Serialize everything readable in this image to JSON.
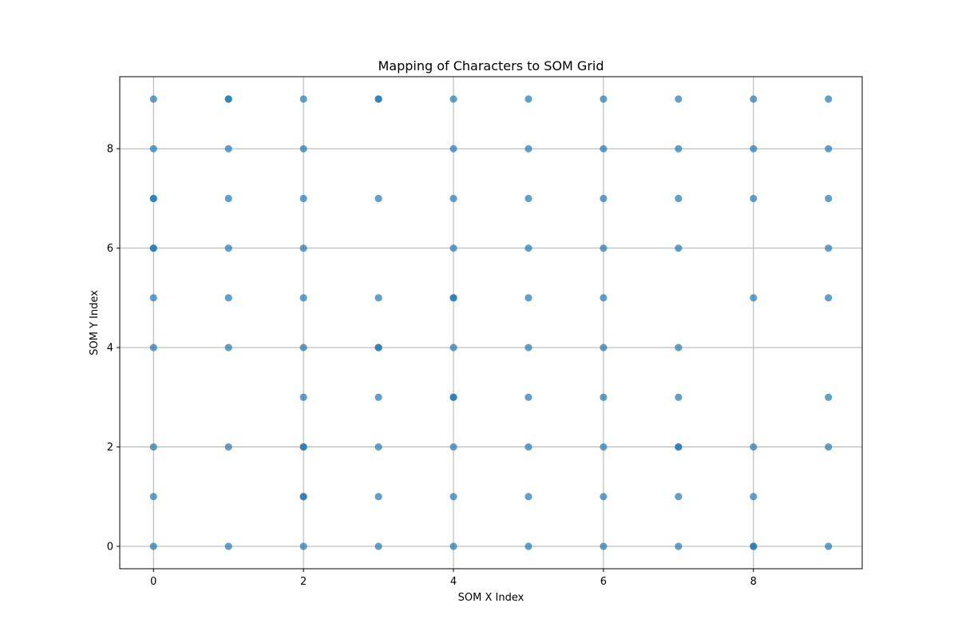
{
  "chart_data": {
    "type": "scatter",
    "title": "Mapping of Characters to SOM Grid",
    "xlabel": "SOM X Index",
    "ylabel": "SOM Y Index",
    "xlim": [
      -0.45,
      9.45
    ],
    "ylim": [
      -0.45,
      9.45
    ],
    "xticks": [
      0,
      2,
      4,
      6,
      8
    ],
    "yticks": [
      0,
      2,
      4,
      6,
      8
    ],
    "grid": true,
    "marker_color": "#1f77b4",
    "points": [
      [
        0,
        9
      ],
      [
        0,
        8
      ],
      [
        0,
        7
      ],
      [
        0,
        7
      ],
      [
        0,
        6
      ],
      [
        0,
        6
      ],
      [
        0,
        5
      ],
      [
        0,
        4
      ],
      [
        0,
        2
      ],
      [
        0,
        1
      ],
      [
        0,
        0
      ],
      [
        1,
        9
      ],
      [
        1,
        9
      ],
      [
        1,
        8
      ],
      [
        1,
        7
      ],
      [
        1,
        6
      ],
      [
        1,
        5
      ],
      [
        1,
        4
      ],
      [
        1,
        2
      ],
      [
        1,
        0
      ],
      [
        2,
        9
      ],
      [
        2,
        8
      ],
      [
        2,
        7
      ],
      [
        2,
        6
      ],
      [
        2,
        5
      ],
      [
        2,
        4
      ],
      [
        2,
        3
      ],
      [
        2,
        2
      ],
      [
        2,
        2
      ],
      [
        2,
        1
      ],
      [
        2,
        1
      ],
      [
        2,
        0
      ],
      [
        3,
        9
      ],
      [
        3,
        9
      ],
      [
        3,
        7
      ],
      [
        3,
        5
      ],
      [
        3,
        4
      ],
      [
        3,
        4
      ],
      [
        3,
        3
      ],
      [
        3,
        2
      ],
      [
        3,
        1
      ],
      [
        3,
        0
      ],
      [
        4,
        9
      ],
      [
        4,
        8
      ],
      [
        4,
        7
      ],
      [
        4,
        6
      ],
      [
        4,
        5
      ],
      [
        4,
        5
      ],
      [
        4,
        4
      ],
      [
        4,
        3
      ],
      [
        4,
        3
      ],
      [
        4,
        2
      ],
      [
        4,
        1
      ],
      [
        4,
        0
      ],
      [
        5,
        9
      ],
      [
        5,
        8
      ],
      [
        5,
        7
      ],
      [
        5,
        6
      ],
      [
        5,
        5
      ],
      [
        5,
        4
      ],
      [
        5,
        3
      ],
      [
        5,
        2
      ],
      [
        5,
        1
      ],
      [
        5,
        0
      ],
      [
        6,
        9
      ],
      [
        6,
        8
      ],
      [
        6,
        7
      ],
      [
        6,
        6
      ],
      [
        6,
        5
      ],
      [
        6,
        4
      ],
      [
        6,
        3
      ],
      [
        6,
        2
      ],
      [
        6,
        1
      ],
      [
        6,
        0
      ],
      [
        7,
        9
      ],
      [
        7,
        8
      ],
      [
        7,
        7
      ],
      [
        7,
        6
      ],
      [
        7,
        4
      ],
      [
        7,
        3
      ],
      [
        7,
        2
      ],
      [
        7,
        2
      ],
      [
        7,
        1
      ],
      [
        7,
        0
      ],
      [
        8,
        9
      ],
      [
        8,
        8
      ],
      [
        8,
        7
      ],
      [
        8,
        5
      ],
      [
        8,
        2
      ],
      [
        8,
        1
      ],
      [
        8,
        0
      ],
      [
        8,
        0
      ],
      [
        9,
        9
      ],
      [
        9,
        8
      ],
      [
        9,
        7
      ],
      [
        9,
        6
      ],
      [
        9,
        5
      ],
      [
        9,
        3
      ],
      [
        9,
        2
      ],
      [
        9,
        0
      ]
    ]
  }
}
